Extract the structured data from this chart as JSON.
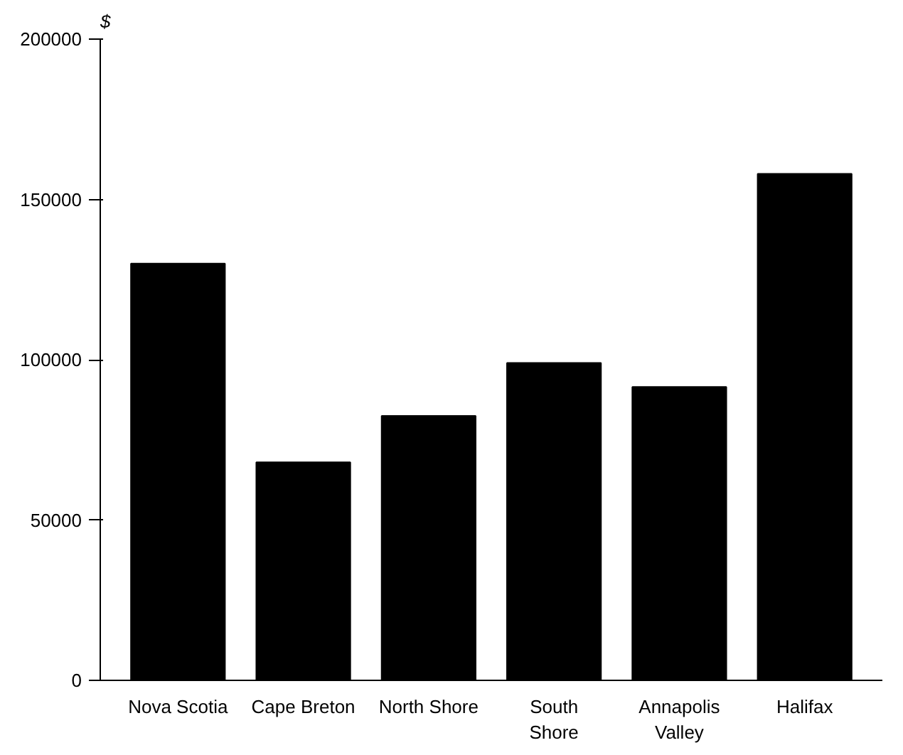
{
  "chart_data": {
    "type": "bar",
    "ylabel": "$",
    "categories": [
      "Nova Scotia",
      "Cape Breton",
      "North Shore",
      "South Shore",
      "Annapolis Valley",
      "Halifax"
    ],
    "values": [
      130000,
      68000,
      82500,
      99000,
      91500,
      158000
    ],
    "color": "#000000",
    "ylim": [
      0,
      200000
    ],
    "yticks": [
      0,
      50000,
      100000,
      150000,
      200000
    ],
    "grid": false
  }
}
